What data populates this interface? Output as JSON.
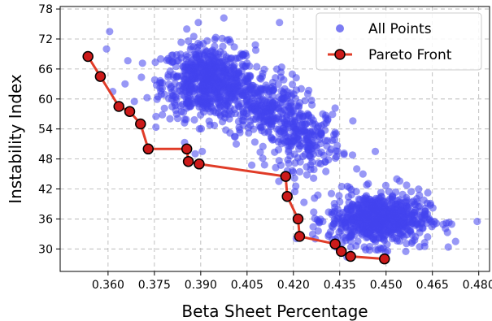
{
  "chart_data": {
    "type": "scatter",
    "xlabel": "Beta Sheet Percentage",
    "ylabel": "Instability Index",
    "xlim": [
      0.3445,
      0.4835
    ],
    "ylim": [
      25.5,
      78.5
    ],
    "xticks": [
      "0.360",
      "0.375",
      "0.390",
      "0.405",
      "0.420",
      "0.435",
      "0.450",
      "0.465",
      "0.480"
    ],
    "yticks": [
      "30",
      "36",
      "42",
      "48",
      "54",
      "60",
      "66",
      "72",
      "78"
    ],
    "grid": true,
    "legend_position": "top-right",
    "colors": {
      "points": "#4444ee",
      "pareto_line": "#e03c28",
      "pareto_marker": "#cc1a1a",
      "marker_edge": "#000000"
    },
    "series": [
      {
        "name": "All Points",
        "kind": "scatter",
        "clusters": [
          {
            "center": [
              0.3925,
              63.5
            ],
            "spread": [
              0.0075,
              3.6
            ],
            "count": 650
          },
          {
            "center": [
              0.4105,
              58.5
            ],
            "spread": [
              0.0065,
              3.2
            ],
            "count": 260
          },
          {
            "center": [
              0.4235,
              52.0
            ],
            "spread": [
              0.006,
              3.0
            ],
            "count": 220
          },
          {
            "center": [
              0.4475,
              36.0
            ],
            "spread": [
              0.008,
              2.6
            ],
            "count": 700
          }
        ],
        "outliers": [
          [
            0.3605,
            73.5
          ],
          [
            0.3595,
            70.0
          ],
          [
            0.3855,
            74.0
          ],
          [
            0.3975,
            76.2
          ],
          [
            0.4155,
            75.3
          ],
          [
            0.3755,
            56.5
          ],
          [
            0.3655,
            63.0
          ],
          [
            0.3615,
            61.5
          ],
          [
            0.3685,
            59.5
          ],
          [
            0.3905,
            49.5
          ],
          [
            0.4305,
            45.5
          ],
          [
            0.4425,
            45.0
          ],
          [
            0.4465,
            49.5
          ],
          [
            0.4535,
            44.0
          ],
          [
            0.4795,
            35.5
          ],
          [
            0.4725,
            31.5
          ],
          [
            0.4625,
            30.5
          ],
          [
            0.4405,
            46.0
          ],
          [
            0.4375,
            42.5
          ],
          [
            0.4015,
            51.0
          ]
        ]
      },
      {
        "name": "Pareto Front",
        "kind": "line-markers",
        "x": [
          0.3535,
          0.3575,
          0.3635,
          0.367,
          0.3705,
          0.373,
          0.3855,
          0.386,
          0.3895,
          0.4175,
          0.418,
          0.4215,
          0.422,
          0.4335,
          0.4355,
          0.4385,
          0.4495
        ],
        "y": [
          68.5,
          64.5,
          58.5,
          57.5,
          55.0,
          50.0,
          50.0,
          47.5,
          47.0,
          44.5,
          40.5,
          36.0,
          32.5,
          31.0,
          29.5,
          28.5,
          28.0
        ]
      }
    ]
  }
}
